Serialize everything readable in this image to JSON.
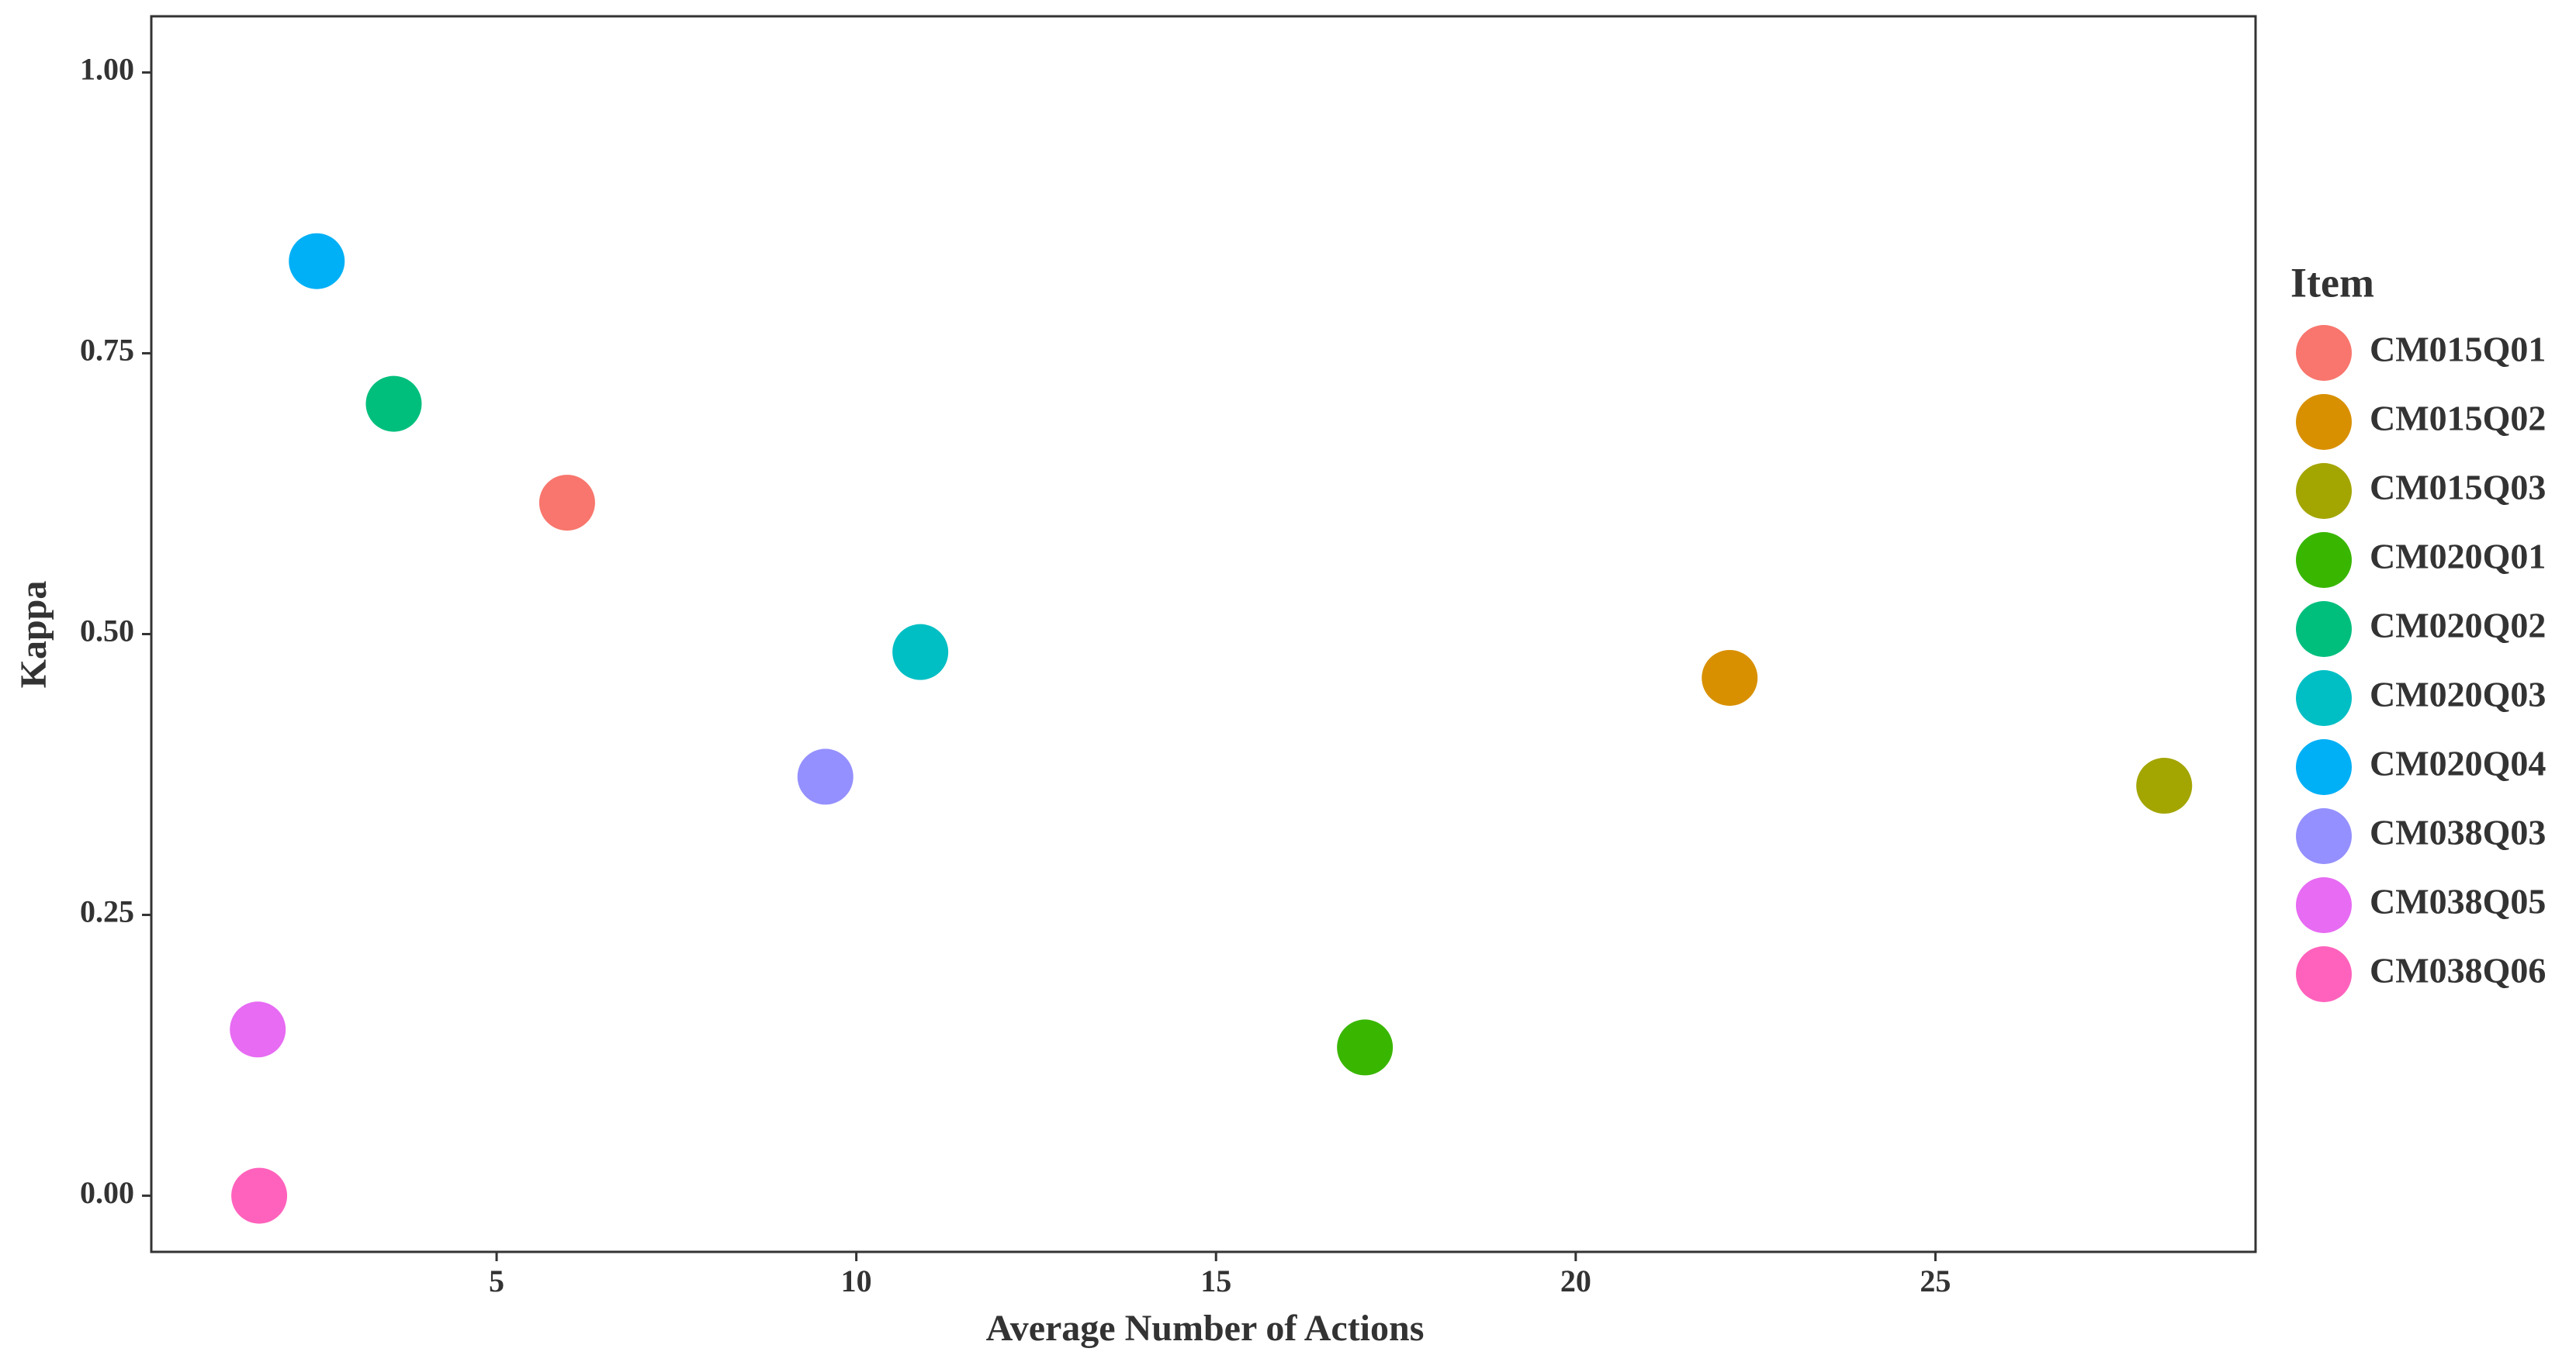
{
  "chart_data": {
    "type": "scatter",
    "x_label": "Average Number of Actions",
    "y_label": "Kappa",
    "legend_title": "Item",
    "legend_position": "right",
    "grid": false,
    "xlim": [
      0.2,
      29.45
    ],
    "ylim": [
      -0.05,
      1.05
    ],
    "xticks": [
      5,
      10,
      15,
      20,
      25
    ],
    "yticks": [
      {
        "value": 0,
        "label": "0.00"
      },
      {
        "value": 0.25,
        "label": "0.25"
      },
      {
        "value": 0.5,
        "label": "0.50"
      },
      {
        "value": 0.75,
        "label": "0.75"
      },
      {
        "value": 1,
        "label": "1.00"
      }
    ],
    "series": [
      {
        "name": "CM015Q01",
        "color": "#F8766D",
        "x": [
          5.98
        ],
        "values": [
          0.617
        ]
      },
      {
        "name": "CM015Q02",
        "color": "#D89000",
        "x": [
          22.14
        ],
        "values": [
          0.461
        ]
      },
      {
        "name": "CM015Q03",
        "color": "#A3A500",
        "x": [
          28.18
        ],
        "values": [
          0.365
        ]
      },
      {
        "name": "CM020Q01",
        "color": "#39B600",
        "x": [
          17.07
        ],
        "values": [
          0.132
        ]
      },
      {
        "name": "CM020Q02",
        "color": "#00BF7D",
        "x": [
          3.57
        ],
        "values": [
          0.705
        ]
      },
      {
        "name": "CM020Q03",
        "color": "#00BFC4",
        "x": [
          10.89
        ],
        "values": [
          0.484
        ]
      },
      {
        "name": "CM020Q04",
        "color": "#00B0F6",
        "x": [
          2.5
        ],
        "values": [
          0.832
        ]
      },
      {
        "name": "CM038Q03",
        "color": "#9590FF",
        "x": [
          9.57
        ],
        "values": [
          0.373
        ]
      },
      {
        "name": "CM038Q05",
        "color": "#E76BF3",
        "x": [
          1.68
        ],
        "values": [
          0.148
        ]
      },
      {
        "name": "CM038Q06",
        "color": "#FF62BC",
        "x": [
          1.7
        ],
        "values": [
          0
        ]
      }
    ]
  }
}
